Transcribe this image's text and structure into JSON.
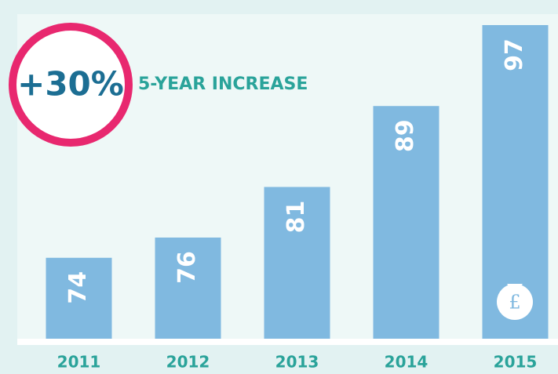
{
  "chart_data": {
    "type": "bar",
    "annotation_value": "+30%",
    "annotation_text": "5-YEAR INCREASE",
    "categories": [
      "2011",
      "2012",
      "2013",
      "2014",
      "2015"
    ],
    "values": [
      74,
      76,
      81,
      89,
      97
    ],
    "color": "#80b9e0",
    "ylim": [
      66,
      97
    ]
  }
}
